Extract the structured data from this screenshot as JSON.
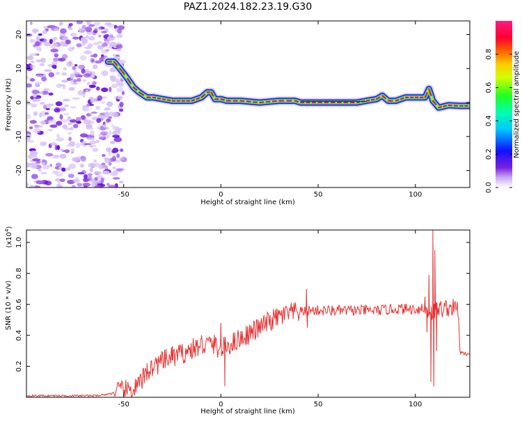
{
  "title": "PAZ1.2024.182.23.19.G30",
  "colors": {
    "snr_line": "#e83030",
    "noise_speckle": "#7a1fe0",
    "ridge_core": "#ff0033",
    "ridge_outline": "#1010cc"
  },
  "chart_data": [
    {
      "type": "heatmap",
      "xlabel": "Height of straight line (km)",
      "ylabel": "Frequency (Hz)",
      "xlim": [
        -100,
        128
      ],
      "ylim": [
        -25,
        24
      ],
      "xticks": [
        -50,
        0,
        50,
        100
      ],
      "yticks": [
        -20,
        -10,
        0,
        10,
        20
      ],
      "colorbar": {
        "label": "Normalized spectral amplitude",
        "range": [
          0,
          1
        ],
        "ticks": [
          "0.0",
          "0.2",
          "0.4",
          "0.6",
          "0.8"
        ],
        "colormap": "rainbow (white-violet-blue-cyan-green-yellow-red-magenta)"
      },
      "noise_region_x": [
        -100,
        -50
      ],
      "ridge": {
        "x": [
          -58,
          -55,
          -52,
          -48,
          -45,
          -42,
          -38,
          -35,
          -30,
          -25,
          -20,
          -15,
          -10,
          -7,
          -5,
          -3,
          0,
          3,
          10,
          20,
          30,
          38,
          41,
          50,
          60,
          70,
          75,
          80,
          83,
          86,
          90,
          95,
          100,
          105,
          107,
          109,
          112,
          117,
          123,
          128
        ],
        "y": [
          12,
          12,
          10,
          7,
          4.5,
          3,
          1.5,
          1.5,
          1,
          0.5,
          0.5,
          0.5,
          1.5,
          3,
          3,
          1,
          1,
          0.5,
          0.5,
          0,
          0.5,
          0.5,
          0,
          0,
          0,
          0,
          0.5,
          1,
          2,
          0.5,
          0.5,
          1.5,
          1.5,
          1.5,
          4,
          0.5,
          -1.5,
          -0.8,
          -1,
          -1
        ]
      }
    },
    {
      "type": "line",
      "xlabel": "Height of straight line (km)",
      "ylabel": "SNR (10 * v/v)",
      "scale_note": "(x10",
      "scale_exp": "4",
      "scale_close": ")",
      "xlim": [
        -100,
        128
      ],
      "ylim": [
        0,
        1.08
      ],
      "xticks": [
        -50,
        0,
        50,
        100
      ],
      "yticks": [
        "0.2",
        "0.4",
        "0.6",
        "0.8",
        "1.0"
      ],
      "series": [
        {
          "x": [
            -100,
            -80,
            -65,
            -58,
            -55,
            -50,
            -45,
            -42,
            -40,
            -38,
            -35,
            -30,
            -25,
            -20,
            -15,
            -10,
            -5,
            0,
            10,
            20,
            25,
            30,
            35,
            40,
            45,
            50,
            60,
            70,
            80,
            90,
            95,
            100,
            104,
            107,
            109,
            110,
            112,
            118,
            122,
            123,
            125,
            128
          ],
          "y": [
            0.01,
            0.01,
            0.01,
            0.02,
            0.03,
            0.04,
            0.05,
            0.08,
            0.12,
            0.16,
            0.2,
            0.23,
            0.26,
            0.28,
            0.31,
            0.33,
            0.35,
            0.31,
            0.38,
            0.45,
            0.49,
            0.52,
            0.54,
            0.55,
            0.56,
            0.56,
            0.56,
            0.56,
            0.56,
            0.57,
            0.57,
            0.57,
            0.57,
            0.56,
            0.55,
            0.56,
            0.57,
            0.58,
            0.57,
            0.29,
            0.28,
            0.28
          ],
          "spikes": [
            {
              "x": -38,
              "y": 0.22
            },
            {
              "x": -25,
              "y": 0.33
            },
            {
              "x": -10,
              "y": 0.4
            },
            {
              "x": 0,
              "y": 0.48
            },
            {
              "x": 2,
              "y": 0.07
            },
            {
              "x": 44,
              "y": 0.7
            },
            {
              "x": 44.5,
              "y": 0.45
            },
            {
              "x": 105,
              "y": 0.65
            },
            {
              "x": 106,
              "y": 0.42
            },
            {
              "x": 107,
              "y": 0.79
            },
            {
              "x": 108,
              "y": 0.1
            },
            {
              "x": 109,
              "y": 1.08
            },
            {
              "x": 109.5,
              "y": 0.07
            },
            {
              "x": 110,
              "y": 0.95
            },
            {
              "x": 111,
              "y": 0.3
            }
          ]
        }
      ]
    }
  ]
}
